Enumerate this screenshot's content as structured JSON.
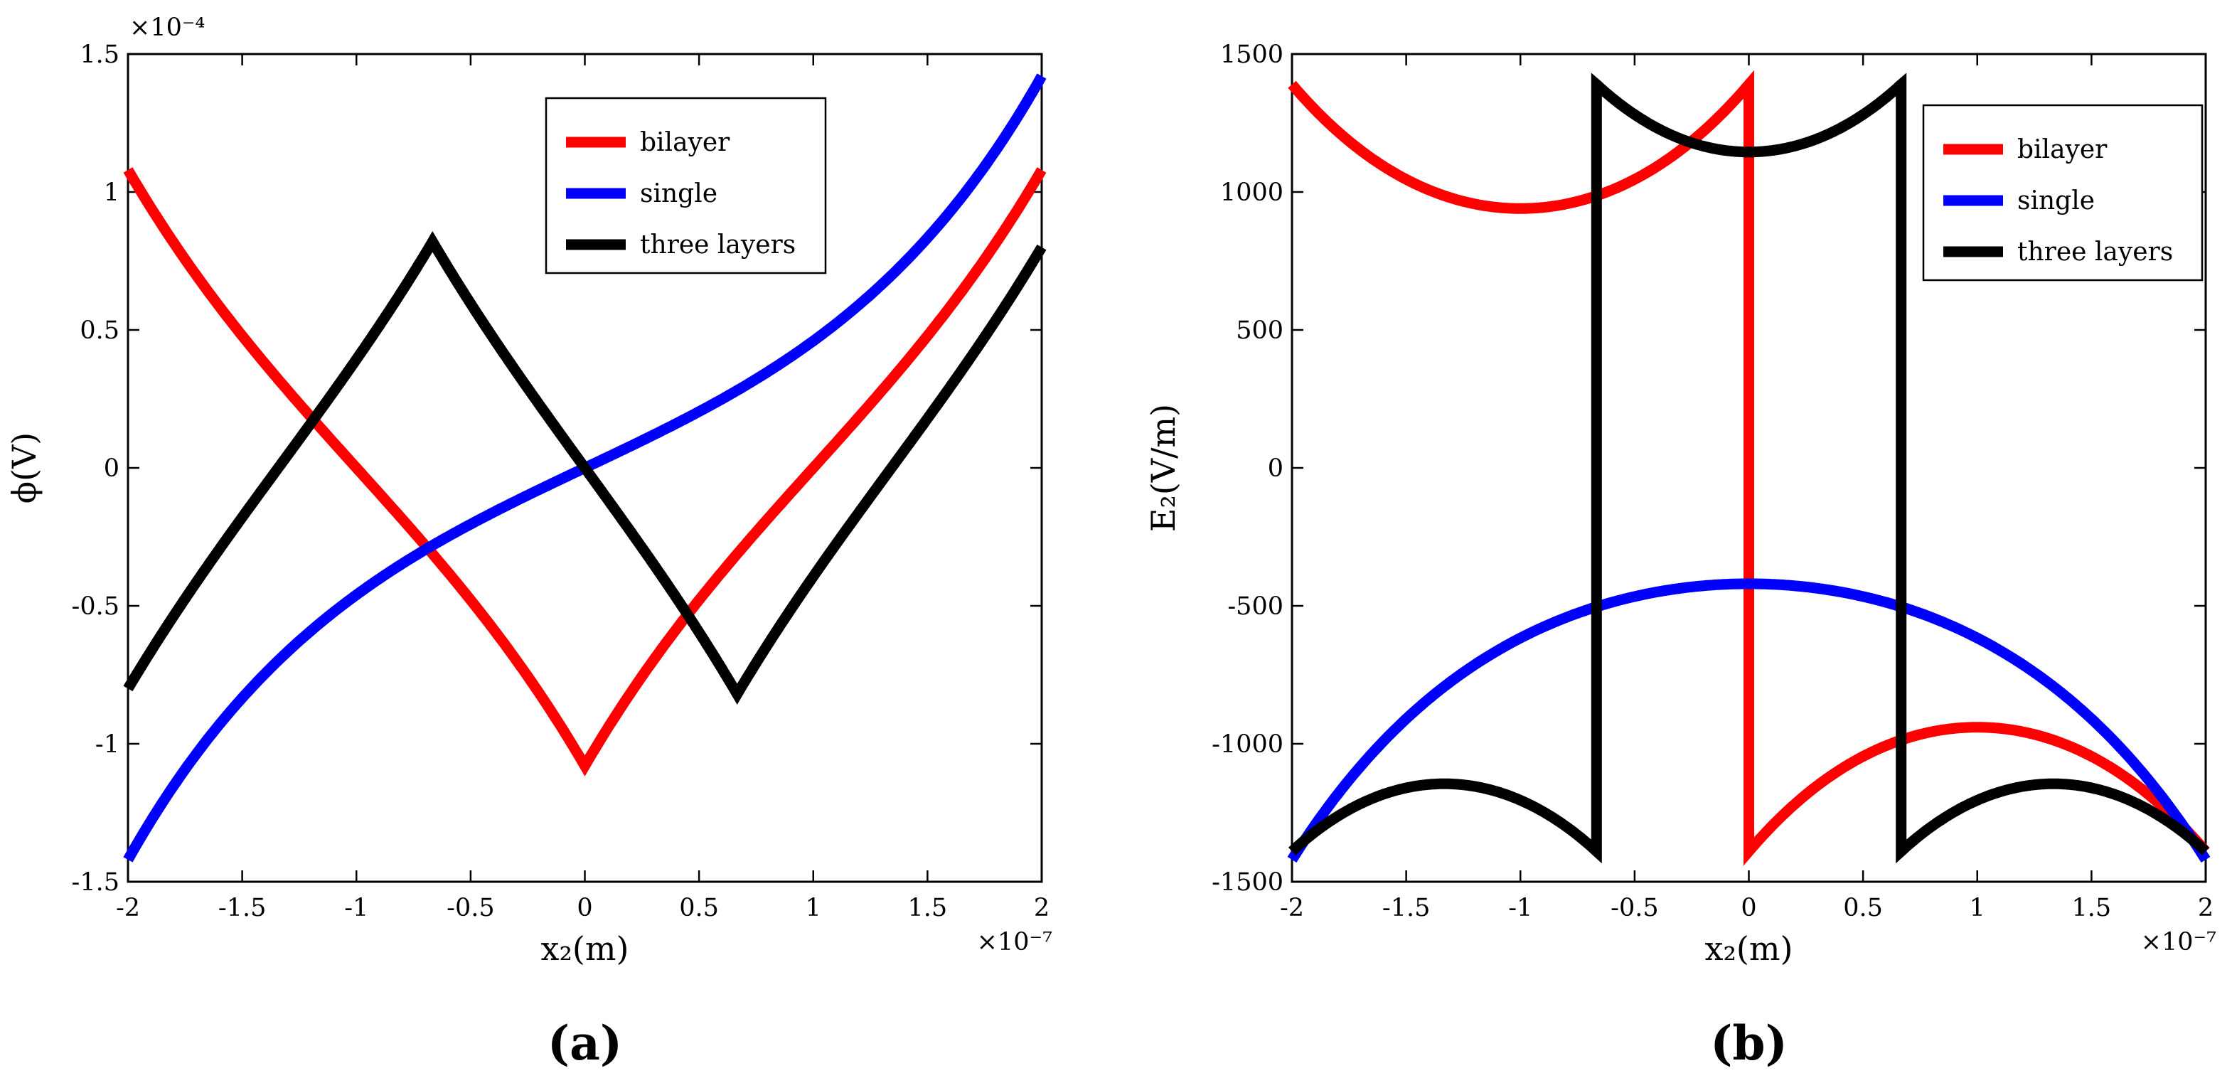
{
  "chart_data": [
    {
      "type": "line",
      "panel_label": "(a)",
      "ylabel": "ϕ(V)",
      "xlabel": "x₂(m)",
      "x_exponent": "×10⁻⁷",
      "y_exponent": "×10⁻⁴",
      "xlim": [
        -2,
        2
      ],
      "ylim": [
        -1.5,
        1.5
      ],
      "x_ticks": [
        "-2",
        "-1.5",
        "-1",
        "-0.5",
        "0",
        "0.5",
        "1",
        "1.5",
        "2"
      ],
      "y_ticks": [
        "-1.5",
        "-1",
        "-0.5",
        "0",
        "0.5",
        "1",
        "1.5"
      ],
      "legend_position": "top-right",
      "series": [
        {
          "name": "bilayer",
          "color": "#ff0000",
          "x": [
            -2,
            -1.5,
            -1,
            -0.5,
            0,
            0.5,
            1,
            1.5,
            2
          ],
          "y": [
            1.08,
            0.5,
            0.06,
            -0.45,
            -1.08,
            -0.5,
            -0.05,
            0.46,
            1.08
          ]
        },
        {
          "name": "single",
          "color": "#0000ff",
          "x": [
            -2,
            -1.5,
            -1,
            -0.5,
            0,
            0.5,
            1,
            1.5,
            2
          ],
          "y": [
            -1.42,
            -0.87,
            -0.51,
            -0.24,
            0,
            0.24,
            0.51,
            0.88,
            1.42
          ]
        },
        {
          "name": "three layers",
          "color": "#000000",
          "x": [
            -2,
            -1.33,
            -0.67,
            0,
            0.67,
            1.33,
            2
          ],
          "y": [
            -0.8,
            0.08,
            0.82,
            0,
            -0.82,
            -0.1,
            0.8
          ]
        }
      ]
    },
    {
      "type": "line",
      "panel_label": "(b)",
      "ylabel": "E₂(V/m)",
      "xlabel": "x₂(m)",
      "x_exponent": "×10⁻⁷",
      "xlim": [
        -2,
        2
      ],
      "ylim": [
        -1500,
        1500
      ],
      "x_ticks": [
        "-2",
        "-1.5",
        "-1",
        "-0.5",
        "0",
        "0.5",
        "1",
        "1.5",
        "2"
      ],
      "y_ticks": [
        "-1500",
        "-1000",
        "-500",
        "0",
        "500",
        "1000",
        "1500"
      ],
      "legend_position": "top-right",
      "series": [
        {
          "name": "bilayer",
          "color": "#ff0000",
          "x": [
            -2,
            -1.5,
            -1,
            -0.5,
            0,
            0,
            0.5,
            1,
            1.5,
            2
          ],
          "y": [
            1390,
            1060,
            940,
            1020,
            1390,
            -1390,
            -1020,
            -940,
            -1060,
            -1390
          ]
        },
        {
          "name": "single",
          "color": "#0000ff",
          "x": [
            -2,
            -1.5,
            -1,
            -0.5,
            0,
            0.5,
            1,
            1.5,
            2
          ],
          "y": [
            -1420,
            -880,
            -620,
            -470,
            -420,
            -470,
            -620,
            -880,
            -1420
          ]
        },
        {
          "name": "three layers",
          "color": "#000000",
          "x": [
            -2,
            -1.33,
            -0.67,
            -0.67,
            0,
            0.67,
            0.67,
            1.33,
            2
          ],
          "y": [
            -1390,
            -1145,
            -1390,
            1390,
            1145,
            1390,
            -1390,
            -1145,
            -1390
          ]
        }
      ]
    }
  ]
}
